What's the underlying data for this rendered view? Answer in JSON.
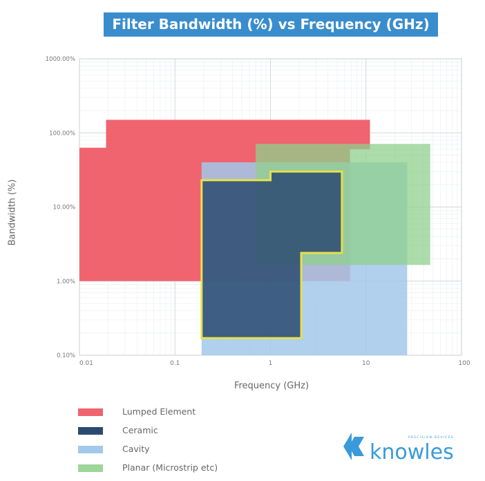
{
  "chart_data": {
    "type": "area",
    "title": "Filter Bandwidth (%) vs Frequency (GHz)",
    "xlabel": "Frequency (GHz)",
    "ylabel": "Bandwidth (%)",
    "xscale": "log",
    "yscale": "log",
    "xlim": [
      0.01,
      100
    ],
    "ylim": [
      0.1,
      1000
    ],
    "xticks": [
      {
        "v": 0.01,
        "label": "0.01"
      },
      {
        "v": 0.1,
        "label": "0.1"
      },
      {
        "v": 1,
        "label": "1"
      },
      {
        "v": 10,
        "label": "10"
      },
      {
        "v": 100,
        "label": "100"
      }
    ],
    "yticks": [
      {
        "v": 0.1,
        "label": "0.10%"
      },
      {
        "v": 1,
        "label": "1.00%"
      },
      {
        "v": 10,
        "label": "10.00%"
      },
      {
        "v": 100,
        "label": "100.00%"
      },
      {
        "v": 1000,
        "label": "1000.00%"
      }
    ],
    "grid": true,
    "legend_position": "bottom-left",
    "series": [
      {
        "name": "Lumped Element",
        "color": "#f0646f",
        "opacity": 1,
        "polygon": [
          [
            0.01,
            1
          ],
          [
            0.01,
            63
          ],
          [
            0.019,
            63
          ],
          [
            0.019,
            150
          ],
          [
            11,
            150
          ],
          [
            11,
            60
          ],
          [
            6.8,
            60
          ],
          [
            6.8,
            1
          ]
        ]
      },
      {
        "name": "Cavity",
        "color": "#a2c8ea",
        "opacity": 0.85,
        "polygon": [
          [
            0.19,
            0.1
          ],
          [
            0.19,
            40
          ],
          [
            27,
            40
          ],
          [
            27,
            0.1
          ]
        ]
      },
      {
        "name": "Planar (Microstrip etc)",
        "color": "#8fd08c",
        "opacity": 0.75,
        "polygon": [
          [
            0.7,
            1.65
          ],
          [
            0.7,
            71
          ],
          [
            47,
            71
          ],
          [
            47,
            1.65
          ]
        ]
      },
      {
        "name": "Ceramic",
        "color": "#2b4a70",
        "opacity": 0.85,
        "outline": "#e6e04a",
        "polygon": [
          [
            0.19,
            0.17
          ],
          [
            0.19,
            23
          ],
          [
            1.0,
            23
          ],
          [
            1.0,
            30
          ],
          [
            5.6,
            30
          ],
          [
            5.6,
            2.4
          ],
          [
            2.1,
            2.4
          ],
          [
            2.1,
            0.17
          ]
        ]
      }
    ]
  },
  "legend": [
    {
      "label": "Lumped Element",
      "color": "#f0646f"
    },
    {
      "label": "Ceramic",
      "color": "#2b4a70"
    },
    {
      "label": "Cavity",
      "color": "#a2c8ea"
    },
    {
      "label": "Planar (Microstrip etc)",
      "color": "#9dd69a"
    }
  ],
  "logo": {
    "text": "knowles",
    "tagline": "PRECISION DEVICES",
    "color": "#3a9ad9"
  }
}
